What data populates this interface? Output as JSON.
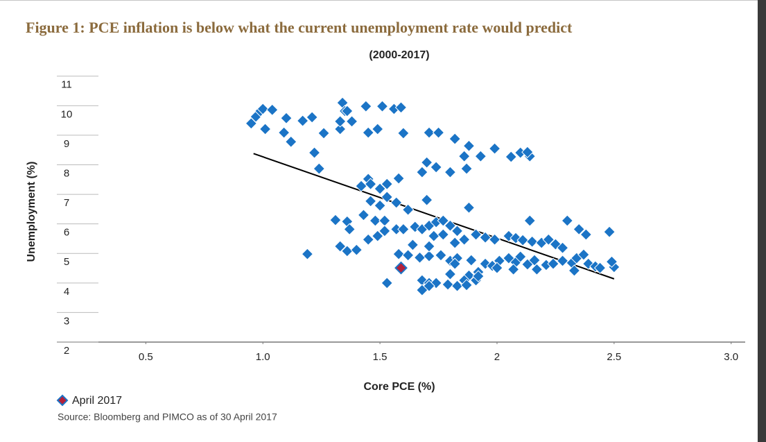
{
  "chart_data": {
    "type": "scatter",
    "title": "Figure 1: PCE inflation is below what the current unemployment rate would predict",
    "subtitle": "(2000-2017)",
    "x_label": "Core PCE (%)",
    "y_label": "Unemployment (%)",
    "source": "Source: Bloomberg and PIMCO as of 30 April 2017",
    "xlim": [
      0.12,
      3.06
    ],
    "ylim": [
      2,
      11.3
    ],
    "xticks": [
      0.5,
      {
        "value": 1,
        "label": "1.0"
      },
      1.5,
      2,
      2.5,
      {
        "value": 3,
        "label": "3.0"
      }
    ],
    "yticks": [
      2,
      3,
      4,
      5,
      6,
      7,
      8,
      9,
      10,
      11
    ],
    "grid": true,
    "legend": "bottom-left",
    "series": [
      {
        "color": "#1b74c6",
        "x": [
          0.95,
          0.97,
          0.99,
          1.0,
          1.04,
          1.01,
          1.1,
          1.09,
          1.12,
          1.17,
          1.21,
          1.26,
          1.22,
          1.24,
          1.33,
          1.34,
          1.33,
          1.35,
          1.38,
          1.36,
          1.44,
          1.45,
          1.49,
          1.51,
          1.56,
          1.59,
          1.6,
          1.71,
          1.75,
          1.82,
          1.88,
          1.86,
          1.87,
          1.93,
          1.99,
          2.06,
          2.1,
          2.14,
          2.13,
          1.7,
          1.74,
          1.68,
          1.8,
          1.42,
          1.45,
          1.46,
          1.5,
          1.53,
          1.58,
          1.46,
          1.5,
          1.53,
          1.57,
          1.62,
          1.7,
          1.88,
          1.43,
          1.48,
          1.52,
          1.31,
          1.36,
          1.37,
          1.33,
          1.36,
          1.4,
          1.45,
          1.49,
          1.52,
          1.57,
          1.6,
          1.65,
          1.68,
          1.71,
          1.74,
          1.77,
          1.8,
          1.83,
          1.73,
          1.77,
          1.82,
          1.86,
          1.91,
          1.95,
          1.99,
          2.05,
          2.08,
          2.11,
          2.15,
          2.19,
          2.22,
          2.25,
          2.28,
          2.3,
          2.35,
          2.38,
          2.48,
          2.14,
          1.19,
          1.58,
          1.62,
          1.67,
          1.71,
          1.76,
          1.8,
          1.83,
          1.82,
          1.89,
          1.95,
          1.98,
          2.01,
          2.05,
          2.08,
          2.1,
          2.13,
          2.16,
          2.17,
          2.21,
          2.24,
          2.28,
          2.32,
          2.34,
          2.37,
          2.39,
          2.42,
          2.44,
          2.5,
          2.49,
          2.33,
          2.07,
          2.0,
          1.92,
          1.88,
          1.8,
          1.86,
          1.91,
          1.53,
          1.68,
          1.71,
          1.74,
          1.79,
          1.83,
          1.87,
          1.68,
          1.71,
          1.92,
          1.64,
          1.71
        ],
        "y": [
          9.4,
          9.63,
          9.82,
          9.89,
          9.86,
          9.21,
          9.58,
          9.09,
          8.78,
          9.49,
          9.61,
          9.07,
          8.41,
          7.87,
          9.21,
          10.1,
          9.47,
          9.82,
          9.47,
          9.82,
          9.98,
          9.09,
          9.21,
          9.98,
          9.89,
          9.94,
          9.07,
          9.09,
          9.09,
          8.88,
          8.64,
          8.29,
          7.87,
          8.29,
          8.55,
          8.27,
          8.41,
          8.29,
          8.43,
          8.08,
          7.92,
          7.75,
          7.75,
          7.28,
          7.52,
          7.35,
          7.19,
          7.35,
          7.54,
          6.77,
          6.62,
          6.91,
          6.72,
          6.48,
          6.81,
          6.55,
          6.3,
          6.11,
          6.11,
          6.13,
          6.08,
          5.82,
          5.24,
          5.08,
          5.12,
          5.47,
          5.59,
          5.76,
          5.82,
          5.82,
          5.9,
          5.82,
          5.94,
          6.06,
          6.11,
          5.94,
          5.76,
          5.59,
          5.64,
          5.36,
          5.47,
          5.64,
          5.54,
          5.47,
          5.59,
          5.52,
          5.45,
          5.4,
          5.36,
          5.47,
          5.31,
          5.19,
          6.11,
          5.82,
          5.64,
          5.73,
          6.11,
          4.98,
          4.98,
          4.94,
          4.86,
          4.91,
          4.94,
          4.75,
          4.84,
          4.65,
          4.77,
          4.65,
          4.58,
          4.75,
          4.84,
          4.7,
          4.89,
          4.63,
          4.77,
          4.46,
          4.61,
          4.65,
          4.75,
          4.68,
          4.84,
          4.96,
          4.65,
          4.56,
          4.51,
          4.54,
          4.72,
          4.42,
          4.46,
          4.51,
          4.37,
          4.25,
          4.3,
          4.09,
          4.09,
          4.0,
          4.09,
          4.0,
          4.0,
          3.95,
          3.9,
          3.93,
          3.76,
          3.9,
          4.23,
          5.29,
          5.24
        ]
      },
      {
        "name": "April 2017",
        "color": "#b3203a",
        "x": [
          1.59
        ],
        "y": [
          4.51
        ]
      }
    ],
    "trend_line": {
      "color": "#000000",
      "x": [
        0.96,
        2.5
      ],
      "y": [
        8.38,
        4.14
      ]
    }
  }
}
